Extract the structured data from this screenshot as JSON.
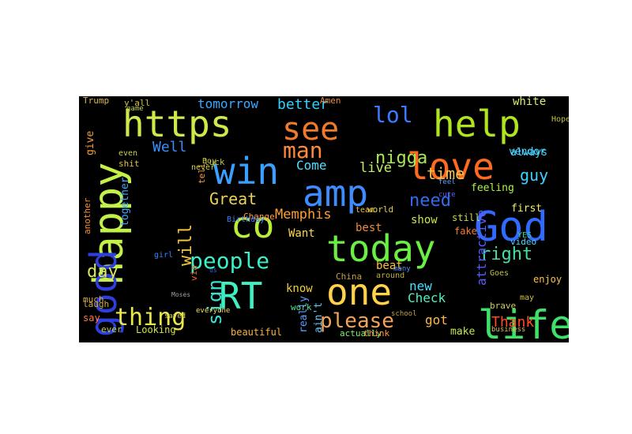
{
  "cloud": {
    "background": "#000000",
    "words": [
      {
        "text": "https",
        "color": "#cfe84a"
      },
      {
        "text": "help",
        "color": "#aee51f"
      },
      {
        "text": "see",
        "color": "#f27a2a"
      },
      {
        "text": "love",
        "color": "#ff6a1f"
      },
      {
        "text": "win",
        "color": "#3aa0ff"
      },
      {
        "text": "amp",
        "color": "#3f8cff"
      },
      {
        "text": "happy",
        "color": "#c4f04a"
      },
      {
        "text": "good",
        "color": "#2e3fe0"
      },
      {
        "text": "co",
        "color": "#b8ee3a"
      },
      {
        "text": "today",
        "color": "#6af043"
      },
      {
        "text": "God",
        "color": "#2f6bff"
      },
      {
        "text": "life",
        "color": "#3ee06a"
      },
      {
        "text": "RT",
        "color": "#3ff0c0"
      },
      {
        "text": "one",
        "color": "#ffd24a"
      },
      {
        "text": "thing",
        "color": "#e8e84a"
      },
      {
        "text": "people",
        "color": "#3af0c8"
      },
      {
        "text": "please",
        "color": "#f0a45a"
      },
      {
        "text": "man",
        "color": "#ff8a3a"
      },
      {
        "text": "lol",
        "color": "#3a7bff"
      },
      {
        "text": "nigga",
        "color": "#a8e94f"
      },
      {
        "text": "guy",
        "color": "#3ad3ff"
      },
      {
        "text": "right",
        "color": "#44e0a0"
      },
      {
        "text": "Great",
        "color": "#ecd05a"
      },
      {
        "text": "Memphis",
        "color": "#ff9e36"
      },
      {
        "text": "need",
        "color": "#2e6cf0"
      },
      {
        "text": "day",
        "color": "#d8e65a"
      },
      {
        "text": "sign",
        "color": "#3ae0d0"
      },
      {
        "text": "tomorrow",
        "color": "#3aa8ff"
      },
      {
        "text": "better",
        "color": "#2ed3ff"
      },
      {
        "text": "Come",
        "color": "#4fe0ff"
      },
      {
        "text": "live",
        "color": "#c2f06a"
      },
      {
        "text": "time",
        "color": "#f0c44a"
      },
      {
        "text": "Well",
        "color": "#3a90ff"
      },
      {
        "text": "will",
        "color": "#f0c040"
      },
      {
        "text": "Thank",
        "color": "#ff4b1f"
      },
      {
        "text": "new",
        "color": "#44e0ff"
      },
      {
        "text": "Check",
        "color": "#50f0c0"
      },
      {
        "text": "got",
        "color": "#ffb84a"
      },
      {
        "text": "show",
        "color": "#c6e84a"
      },
      {
        "text": "Want",
        "color": "#ffd84a"
      },
      {
        "text": "best",
        "color": "#f08a3a"
      },
      {
        "text": "white",
        "color": "#d8f06a"
      },
      {
        "text": "always",
        "color": "#44d6ff"
      },
      {
        "text": "feeling",
        "color": "#b0f04a"
      },
      {
        "text": "first",
        "color": "#f0f06a"
      },
      {
        "text": "attractive",
        "color": "#5a5cff"
      },
      {
        "text": "together",
        "color": "#3ab0ff"
      },
      {
        "text": "give",
        "color": "#f0a03a"
      },
      {
        "text": "Trump",
        "color": "#e0b84a"
      },
      {
        "text": "y'all",
        "color": "#d0c040"
      },
      {
        "text": "fake",
        "color": "#ff7a2a"
      },
      {
        "text": "still",
        "color": "#c8d84a"
      },
      {
        "text": "beat",
        "color": "#ffc040"
      },
      {
        "text": "video",
        "color": "#5ad0ff"
      },
      {
        "text": "vendor",
        "color": "#44d6ff"
      },
      {
        "text": "enjoy",
        "color": "#ffc04a"
      },
      {
        "text": "Looking",
        "color": "#d0e04a"
      },
      {
        "text": "beautiful",
        "color": "#ffb040"
      },
      {
        "text": "make",
        "color": "#c0e84a"
      },
      {
        "text": "really",
        "color": "#5aa0ff"
      },
      {
        "text": "ain't",
        "color": "#60c8ff"
      },
      {
        "text": "actually",
        "color": "#80f070"
      },
      {
        "text": "think",
        "color": "#ff9a3a"
      },
      {
        "text": "say",
        "color": "#ff7a3a"
      },
      {
        "text": "much",
        "color": "#e0b040"
      },
      {
        "text": "laugh",
        "color": "#d0b040"
      },
      {
        "text": "ever",
        "color": "#c0d040"
      },
      {
        "text": "saved",
        "color": "#d0d050"
      },
      {
        "text": "everyone",
        "color": "#f0e050"
      },
      {
        "text": "girl",
        "color": "#3a80ff"
      },
      {
        "text": "know",
        "color": "#f0d040"
      },
      {
        "text": "work",
        "color": "#50e0a0"
      },
      {
        "text": "China",
        "color": "#c0a040"
      },
      {
        "text": "around",
        "color": "#c0b040"
      },
      {
        "text": "world",
        "color": "#e0d050"
      },
      {
        "text": "team",
        "color": "#f0c040"
      },
      {
        "text": "Change",
        "color": "#ff9a40"
      },
      {
        "text": "Birthday",
        "color": "#3a80ff"
      },
      {
        "text": "luck",
        "color": "#c0c040"
      },
      {
        "text": "never",
        "color": "#d0d050"
      },
      {
        "text": "tell",
        "color": "#ff9a40"
      },
      {
        "text": "Boy",
        "color": "#c0c040"
      },
      {
        "text": "even",
        "color": "#d0d050"
      },
      {
        "text": "shit",
        "color": "#e0c040"
      },
      {
        "text": "another",
        "color": "#ff9030"
      },
      {
        "text": "via",
        "color": "#ff6020"
      },
      {
        "text": "Amen",
        "color": "#f08a3a"
      },
      {
        "text": "Goes",
        "color": "#c0c040"
      },
      {
        "text": "brave",
        "color": "#d0d050"
      },
      {
        "text": "cute",
        "color": "#5a5cff"
      },
      {
        "text": "YES",
        "color": "#3ad080"
      },
      {
        "text": "Hope",
        "color": "#c0c040"
      },
      {
        "text": "Moses",
        "color": "#a0a0a0"
      },
      {
        "text": "school",
        "color": "#c0a040"
      },
      {
        "text": "business",
        "color": "#e0c050"
      },
      {
        "text": "us",
        "color": "#3a60e0"
      },
      {
        "text": "may",
        "color": "#d0c040"
      },
      {
        "text": "game",
        "color": "#c0d040"
      },
      {
        "text": "many",
        "color": "#5090ff"
      },
      {
        "text": "feel",
        "color": "#60a0ff"
      }
    ]
  }
}
